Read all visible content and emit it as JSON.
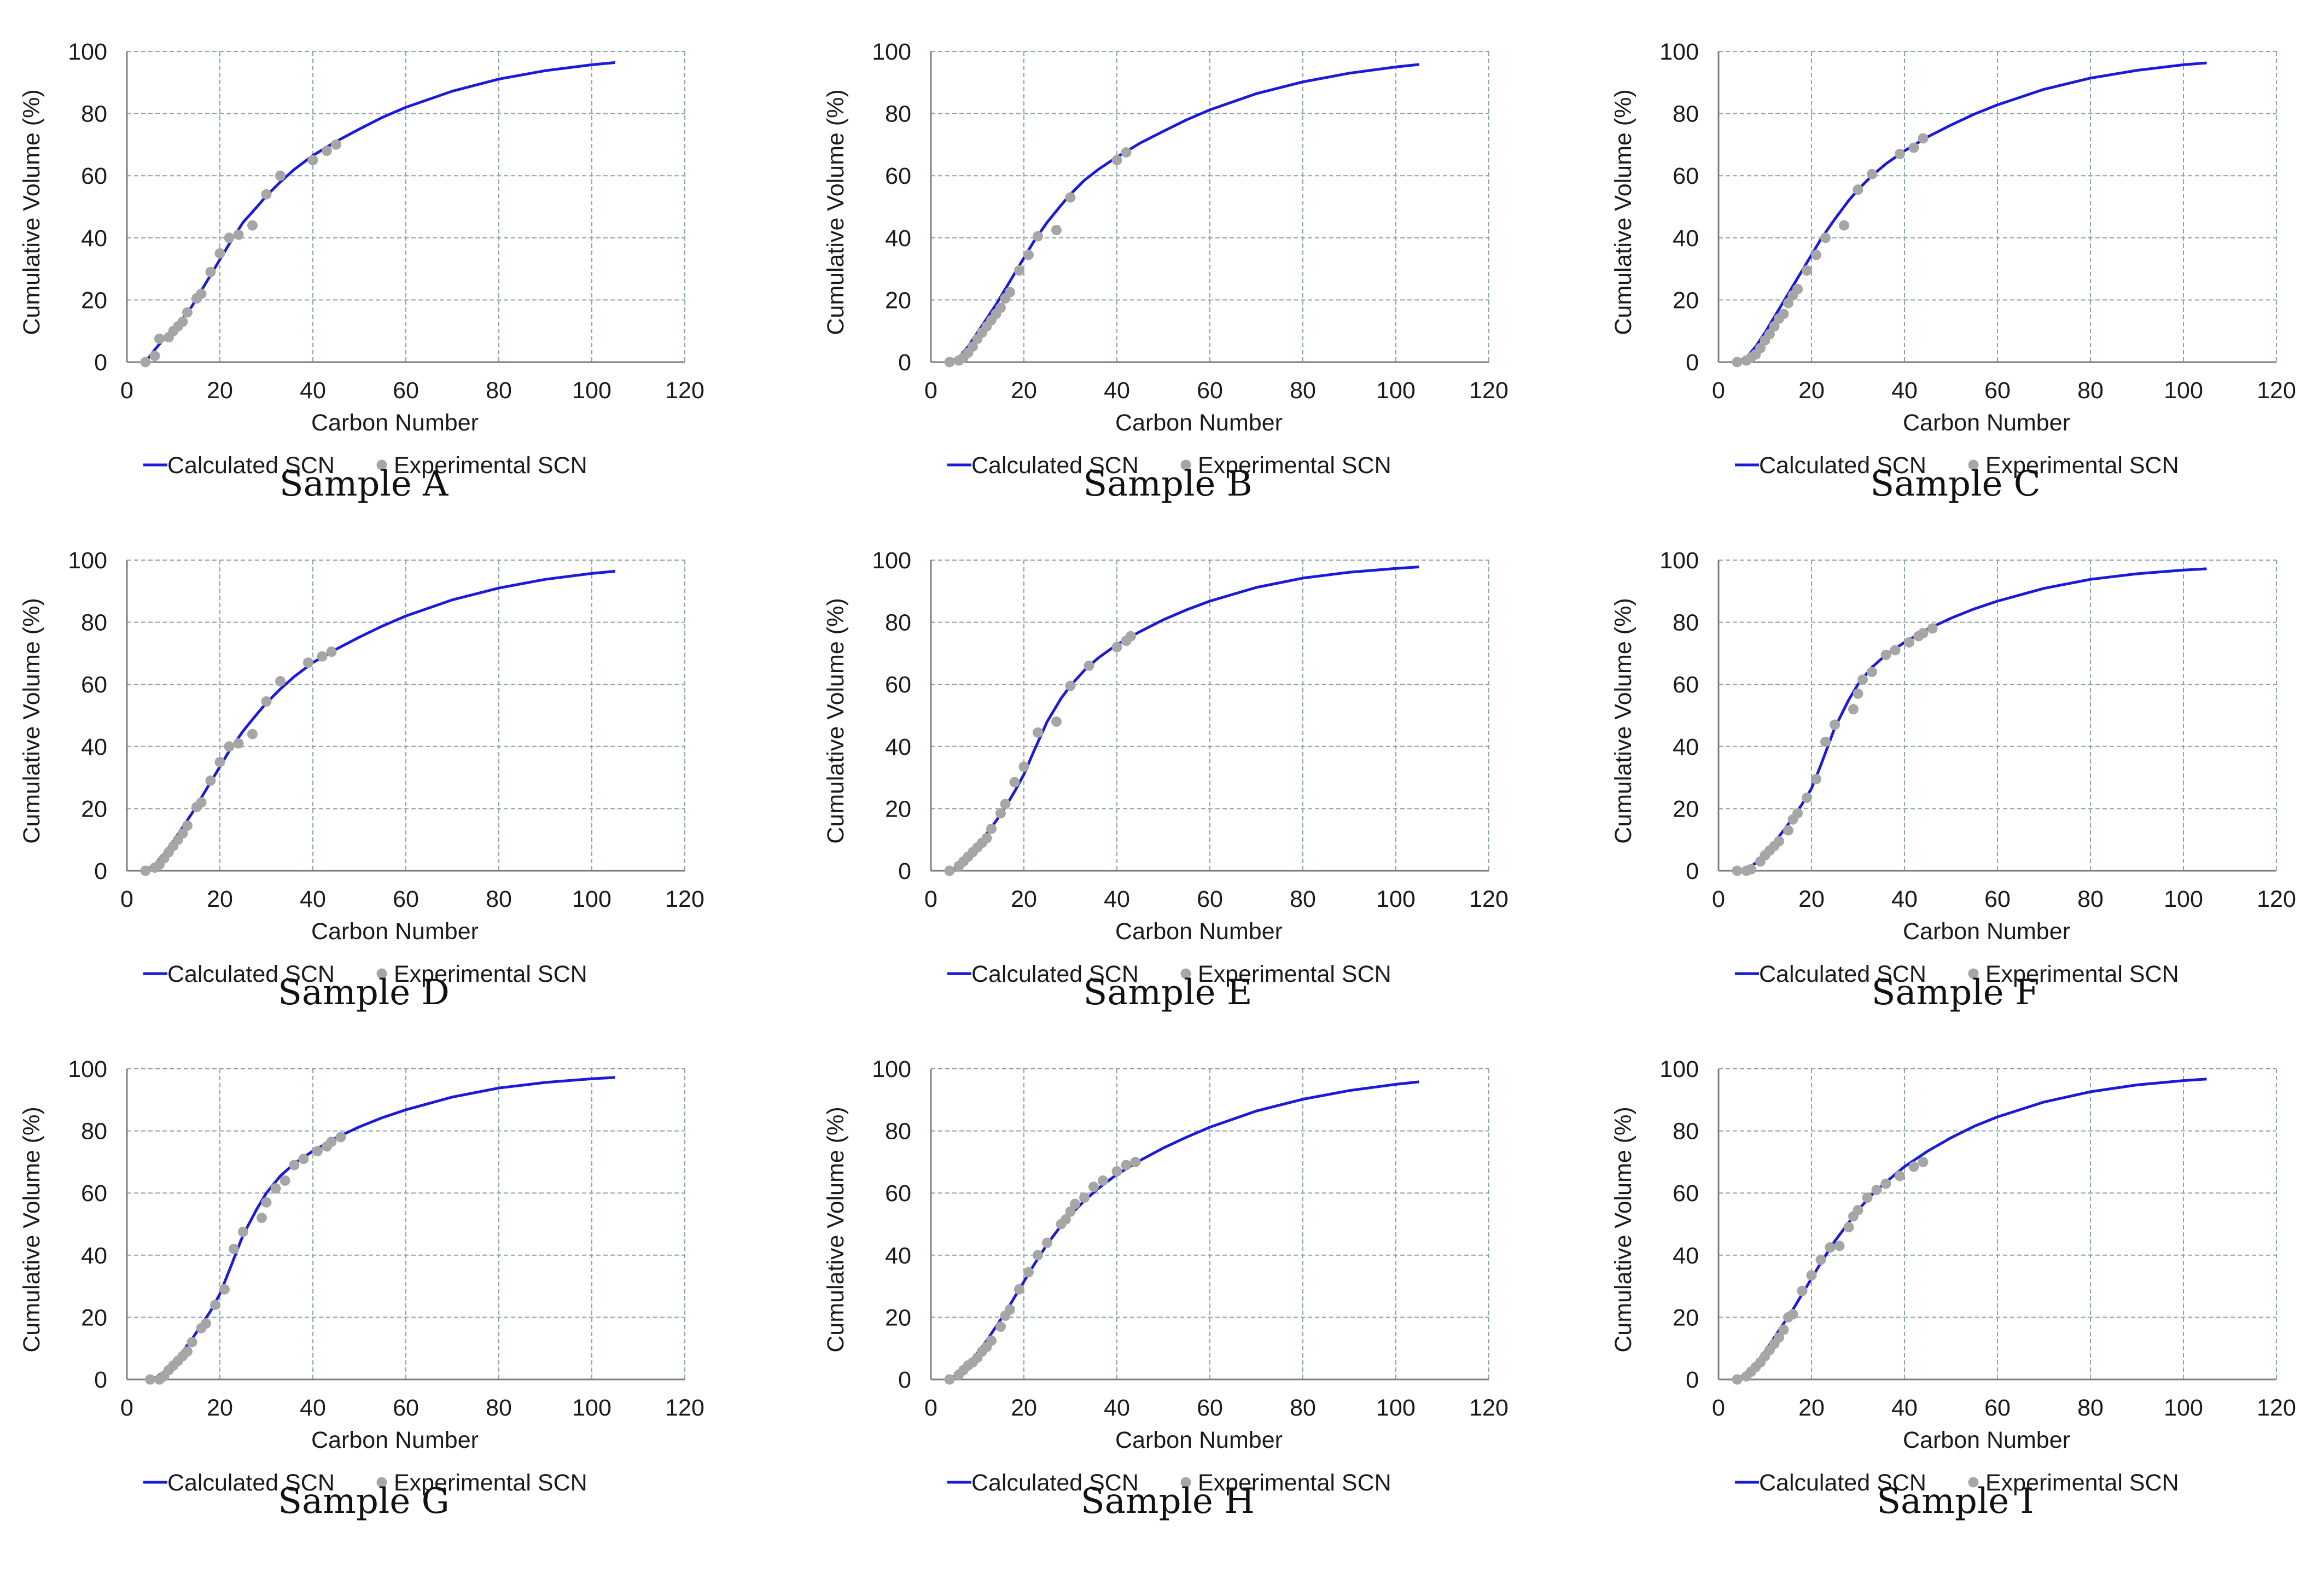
{
  "chart_data": [
    {
      "type": "line+scatter",
      "caption": "Sample A",
      "xlabel": "Carbon Number",
      "ylabel": "Cumulative Volume (%)",
      "xlim": [
        0,
        120
      ],
      "ylim": [
        0,
        100
      ],
      "xticks": [
        0,
        20,
        40,
        60,
        80,
        100,
        120
      ],
      "yticks": [
        0,
        20,
        40,
        60,
        80,
        100
      ],
      "legend": [
        "Calculated SCN",
        "Experimental SCN"
      ],
      "calculated": {
        "x": [
          4,
          6,
          8,
          10,
          12,
          14,
          16,
          18,
          20,
          22,
          25,
          28,
          30,
          33,
          36,
          40,
          45,
          50,
          55,
          60,
          70,
          80,
          90,
          100,
          105
        ],
        "y": [
          0,
          4,
          7.5,
          10.5,
          14,
          18,
          23,
          28,
          33,
          38,
          45,
          50,
          53.5,
          58,
          62,
          66.5,
          71,
          75,
          78.8,
          82,
          87.2,
          91.1,
          93.8,
          95.7,
          96.4
        ]
      },
      "experimental": {
        "x": [
          4,
          6,
          7,
          9,
          10,
          11,
          12,
          13,
          15,
          16,
          18,
          20,
          22,
          24,
          27,
          30,
          33,
          40,
          43,
          45
        ],
        "y": [
          0,
          2,
          7.5,
          8,
          10,
          11.5,
          13,
          16,
          20.5,
          22,
          29,
          35,
          40,
          41,
          44,
          54,
          60,
          65,
          68,
          70
        ]
      }
    },
    {
      "type": "line+scatter",
      "caption": "Sample B",
      "xlabel": "Carbon Number",
      "ylabel": "Cumulative Volume (%)",
      "xlim": [
        0,
        120
      ],
      "ylim": [
        0,
        100
      ],
      "xticks": [
        0,
        20,
        40,
        60,
        80,
        100,
        120
      ],
      "yticks": [
        0,
        20,
        40,
        60,
        80,
        100
      ],
      "legend": [
        "Calculated SCN",
        "Experimental SCN"
      ],
      "calculated": {
        "x": [
          4,
          6,
          8,
          10,
          12,
          14,
          16,
          18,
          20,
          22,
          25,
          28,
          30,
          33,
          36,
          40,
          45,
          50,
          55,
          60,
          70,
          80,
          90,
          100,
          105
        ],
        "y": [
          0,
          1.5,
          5,
          9.5,
          14,
          18.5,
          23.5,
          28.5,
          33.5,
          38.5,
          45,
          50.5,
          54,
          58.5,
          62,
          66,
          70.5,
          74.3,
          78,
          81.2,
          86.4,
          90.2,
          93,
          95,
          95.8
        ]
      },
      "experimental": {
        "x": [
          4,
          6,
          7,
          8,
          9,
          10,
          11,
          12,
          13,
          14,
          15,
          16,
          17,
          19,
          21,
          23,
          27,
          30,
          40,
          42
        ],
        "y": [
          0,
          0.5,
          1.5,
          3,
          5,
          7.5,
          9.5,
          11.5,
          13.5,
          15.5,
          17.5,
          20.5,
          22.5,
          29.5,
          34.5,
          40.5,
          42.5,
          53,
          65,
          67.5
        ]
      }
    },
    {
      "type": "line+scatter",
      "caption": "Sample C",
      "xlabel": "Carbon Number",
      "ylabel": "Cumulative Volume (%)",
      "xlim": [
        0,
        120
      ],
      "ylim": [
        0,
        100
      ],
      "xticks": [
        0,
        20,
        40,
        60,
        80,
        100,
        120
      ],
      "yticks": [
        0,
        20,
        40,
        60,
        80,
        100
      ],
      "legend": [
        "Calculated SCN",
        "Experimental SCN"
      ],
      "calculated": {
        "x": [
          4,
          6,
          8,
          10,
          12,
          14,
          16,
          18,
          20,
          22,
          25,
          28,
          30,
          33,
          36,
          40,
          45,
          50,
          55,
          60,
          70,
          80,
          90,
          100,
          105
        ],
        "y": [
          0,
          1.5,
          5,
          9.5,
          14.5,
          19.5,
          24.5,
          29.5,
          34.5,
          39.5,
          46,
          52,
          55.5,
          60,
          63.8,
          68,
          72.5,
          76.3,
          79.8,
          82.8,
          87.8,
          91.4,
          93.9,
          95.7,
          96.3
        ]
      },
      "experimental": {
        "x": [
          4,
          6,
          7,
          8,
          9,
          10,
          11,
          12,
          13,
          14,
          15,
          16,
          17,
          19,
          21,
          23,
          27,
          30,
          33,
          39,
          42,
          44
        ],
        "y": [
          0,
          0.5,
          1.5,
          2.5,
          4.5,
          7,
          9,
          11.5,
          14,
          15.5,
          19,
          21.5,
          23.5,
          29.5,
          34.5,
          40,
          44,
          55.5,
          60.5,
          67,
          69,
          72
        ]
      }
    },
    {
      "type": "line+scatter",
      "caption": "Sample D",
      "xlabel": "Carbon Number",
      "ylabel": "Cumulative Volume (%)",
      "xlim": [
        0,
        120
      ],
      "ylim": [
        0,
        100
      ],
      "xticks": [
        0,
        20,
        40,
        60,
        80,
        100,
        120
      ],
      "yticks": [
        0,
        20,
        40,
        60,
        80,
        100
      ],
      "legend": [
        "Calculated SCN",
        "Experimental SCN"
      ],
      "calculated": {
        "x": [
          4,
          6,
          8,
          10,
          12,
          14,
          16,
          18,
          20,
          22,
          25,
          28,
          30,
          33,
          36,
          40,
          45,
          50,
          55,
          60,
          70,
          80,
          90,
          100,
          105
        ],
        "y": [
          0,
          2,
          5.5,
          9.5,
          14,
          18.5,
          23.5,
          28.5,
          33.5,
          38.5,
          45,
          50.5,
          54,
          58.5,
          62.5,
          67,
          71.3,
          75.2,
          78.8,
          82,
          87.2,
          91,
          93.8,
          95.7,
          96.4
        ]
      },
      "experimental": {
        "x": [
          4,
          6,
          7,
          8,
          9,
          10,
          11,
          12,
          13,
          15,
          16,
          18,
          20,
          22,
          24,
          27,
          30,
          33,
          39,
          42,
          44
        ],
        "y": [
          0,
          1,
          2,
          4,
          6,
          8,
          10,
          12,
          14.5,
          20.5,
          22,
          29,
          35,
          40,
          41,
          44,
          54.5,
          61,
          67,
          69,
          70.5
        ]
      }
    },
    {
      "type": "line+scatter",
      "caption": "Sample E",
      "xlabel": "Carbon Number",
      "ylabel": "Cumulative Volume (%)",
      "xlim": [
        0,
        120
      ],
      "ylim": [
        0,
        100
      ],
      "xticks": [
        0,
        20,
        40,
        60,
        80,
        100,
        120
      ],
      "yticks": [
        0,
        20,
        40,
        60,
        80,
        100
      ],
      "legend": [
        "Calculated SCN",
        "Experimental SCN"
      ],
      "calculated": {
        "x": [
          4,
          6,
          8,
          10,
          12,
          14,
          16,
          18,
          20,
          22,
          25,
          28,
          30,
          33,
          36,
          40,
          45,
          50,
          55,
          60,
          70,
          80,
          90,
          100,
          105
        ],
        "y": [
          0,
          1.5,
          4.5,
          8,
          12,
          16,
          20.5,
          25.5,
          31,
          38,
          48,
          55.5,
          59.5,
          64.5,
          68.5,
          72.8,
          77,
          80.8,
          84,
          86.8,
          91.2,
          94.2,
          96.1,
          97.3,
          97.8
        ]
      },
      "experimental": {
        "x": [
          4,
          6,
          7,
          8,
          9,
          10,
          11,
          12,
          13,
          15,
          16,
          18,
          20,
          23,
          27,
          30,
          34,
          40,
          42,
          43
        ],
        "y": [
          0,
          1.5,
          3,
          4.5,
          6,
          7.5,
          9,
          10.5,
          13.5,
          18.5,
          21.5,
          28.5,
          33.5,
          44.5,
          48,
          59.5,
          66,
          72,
          74,
          75.5
        ]
      }
    },
    {
      "type": "line+scatter",
      "caption": "Sample F",
      "xlabel": "Carbon Number",
      "ylabel": "Cumulative Volume (%)",
      "xlim": [
        0,
        120
      ],
      "ylim": [
        0,
        100
      ],
      "xticks": [
        0,
        20,
        40,
        60,
        80,
        100,
        120
      ],
      "yticks": [
        0,
        20,
        40,
        60,
        80,
        100
      ],
      "legend": [
        "Calculated SCN",
        "Experimental SCN"
      ],
      "calculated": {
        "x": [
          4,
          6,
          8,
          10,
          12,
          14,
          16,
          18,
          20,
          22,
          25,
          28,
          30,
          33,
          36,
          40,
          45,
          50,
          55,
          60,
          70,
          80,
          90,
          100,
          105
        ],
        "y": [
          0,
          0.5,
          2.5,
          5.5,
          9,
          13,
          17,
          21.5,
          26.5,
          34,
          46,
          55,
          60,
          65.5,
          69.5,
          73.5,
          77.8,
          81.3,
          84.3,
          86.8,
          90.9,
          93.8,
          95.6,
          96.8,
          97.2
        ]
      },
      "experimental": {
        "x": [
          4,
          6,
          7,
          9,
          10,
          11,
          12,
          13,
          15,
          16,
          17,
          19,
          21,
          23,
          25,
          29,
          30,
          31,
          33,
          36,
          38,
          41,
          43,
          44,
          46
        ],
        "y": [
          0,
          0,
          0.5,
          3,
          5,
          6.5,
          8,
          9.5,
          13,
          16.5,
          18.5,
          23.5,
          29.5,
          41.5,
          47,
          52,
          57,
          61.5,
          64,
          69.5,
          71,
          73.5,
          75.5,
          76.5,
          78
        ]
      }
    },
    {
      "type": "line+scatter",
      "caption": "Sample G",
      "xlabel": "Carbon Number",
      "ylabel": "Cumulative Volume (%)",
      "xlim": [
        0,
        120
      ],
      "ylim": [
        0,
        100
      ],
      "xticks": [
        0,
        20,
        40,
        60,
        80,
        100,
        120
      ],
      "yticks": [
        0,
        20,
        40,
        60,
        80,
        100
      ],
      "legend": [
        "Calculated SCN",
        "Experimental SCN"
      ],
      "calculated": {
        "x": [
          4,
          6,
          8,
          10,
          12,
          14,
          16,
          18,
          20,
          22,
          25,
          28,
          30,
          33,
          36,
          40,
          45,
          50,
          55,
          60,
          70,
          80,
          90,
          100,
          105
        ],
        "y": [
          0,
          0.5,
          2.5,
          5.5,
          9,
          13,
          17.5,
          22,
          27.5,
          35,
          46.5,
          55,
          60,
          65.5,
          69.5,
          73.5,
          77.8,
          81.3,
          84.3,
          86.8,
          90.9,
          93.8,
          95.6,
          96.8,
          97.2
        ]
      },
      "experimental": {
        "x": [
          5,
          7,
          8,
          9,
          10,
          11,
          12,
          13,
          14,
          16,
          17,
          19,
          21,
          23,
          25,
          29,
          30,
          32,
          34,
          36,
          38,
          41,
          43,
          44,
          46
        ],
        "y": [
          0,
          0,
          1,
          3,
          4.5,
          6,
          7.5,
          9,
          12,
          16.5,
          18,
          24,
          29,
          42,
          47.5,
          52,
          57,
          61.5,
          64,
          69,
          71,
          73.5,
          75,
          76.5,
          78
        ]
      }
    },
    {
      "type": "line+scatter",
      "caption": "Sample H",
      "xlabel": "Carbon Number",
      "ylabel": "Cumulative Volume (%)",
      "xlim": [
        0,
        120
      ],
      "ylim": [
        0,
        100
      ],
      "xticks": [
        0,
        20,
        40,
        60,
        80,
        100,
        120
      ],
      "yticks": [
        0,
        20,
        40,
        60,
        80,
        100
      ],
      "legend": [
        "Calculated SCN",
        "Experimental SCN"
      ],
      "calculated": {
        "x": [
          4,
          6,
          8,
          10,
          12,
          14,
          16,
          18,
          20,
          22,
          25,
          28,
          30,
          33,
          36,
          40,
          45,
          50,
          55,
          60,
          70,
          80,
          90,
          100,
          105
        ],
        "y": [
          0,
          2,
          5,
          8.5,
          12.5,
          17,
          21.5,
          26.5,
          31.5,
          36.5,
          43.5,
          49.5,
          53,
          57.5,
          61.5,
          66,
          70.5,
          74.5,
          78,
          81.2,
          86.4,
          90.2,
          93,
          95,
          95.8
        ]
      },
      "experimental": {
        "x": [
          4,
          6,
          7,
          8,
          9,
          10,
          11,
          12,
          13,
          15,
          16,
          17,
          19,
          21,
          23,
          25,
          28,
          29,
          30,
          31,
          33,
          35,
          37,
          40,
          42,
          44
        ],
        "y": [
          0,
          1.5,
          3,
          4.5,
          5.5,
          7,
          9,
          10.5,
          12.5,
          17,
          20.5,
          22.5,
          29,
          34.5,
          40,
          44,
          50,
          51.5,
          54,
          56.5,
          58.5,
          62,
          64,
          67,
          69,
          70
        ]
      }
    },
    {
      "type": "line+scatter",
      "caption": "Sample I",
      "xlabel": "Carbon Number",
      "ylabel": "Cumulative Volume (%)",
      "xlim": [
        0,
        120
      ],
      "ylim": [
        0,
        100
      ],
      "xticks": [
        0,
        20,
        40,
        60,
        80,
        100,
        120
      ],
      "yticks": [
        0,
        20,
        40,
        60,
        80,
        100
      ],
      "legend": [
        "Calculated SCN",
        "Experimental SCN"
      ],
      "calculated": {
        "x": [
          4,
          6,
          8,
          10,
          12,
          14,
          16,
          18,
          20,
          22,
          25,
          28,
          30,
          33,
          36,
          40,
          45,
          50,
          55,
          60,
          70,
          80,
          90,
          100,
          105
        ],
        "y": [
          0,
          2,
          5,
          9,
          13.5,
          18,
          22.5,
          27.5,
          32.5,
          37.5,
          44.5,
          50.5,
          54.5,
          59.5,
          63.5,
          68.5,
          73.5,
          77.8,
          81.5,
          84.5,
          89.3,
          92.6,
          94.8,
          96.2,
          96.7
        ]
      },
      "experimental": {
        "x": [
          4,
          6,
          7,
          8,
          9,
          10,
          11,
          12,
          13,
          14,
          15,
          16,
          18,
          20,
          22,
          24,
          26,
          28,
          29,
          30,
          32,
          34,
          36,
          39,
          42,
          44
        ],
        "y": [
          0,
          1,
          2.5,
          4,
          5.5,
          7.5,
          9.5,
          11.5,
          13.5,
          16,
          20,
          21,
          28.5,
          33.5,
          38.5,
          42.5,
          43,
          49,
          52.5,
          54.5,
          58.5,
          61,
          63,
          65.5,
          68.5,
          70
        ]
      }
    }
  ]
}
